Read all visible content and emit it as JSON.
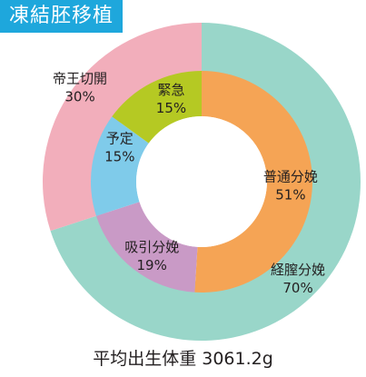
{
  "title": "凍結胚移植",
  "caption": "平均出生体重 3061.2g",
  "chart_data": {
    "type": "donut",
    "title": "凍結胚移植",
    "rings": [
      {
        "name": "outer",
        "slices": [
          {
            "label": "経膣分娩",
            "value": 70,
            "value_label": "70%",
            "color": "#99d6c9"
          },
          {
            "label": "帝王切開",
            "value": 30,
            "value_label": "30%",
            "color": "#f2aebb"
          }
        ]
      },
      {
        "name": "inner",
        "slices": [
          {
            "label": "普通分娩",
            "value": 51,
            "value_label": "51%",
            "color": "#f5a455"
          },
          {
            "label": "吸引分娩",
            "value": 19,
            "value_label": "19%",
            "color": "#c99ac6"
          },
          {
            "label": "予定",
            "value": 15,
            "value_label": "15%",
            "color": "#7fcbea"
          },
          {
            "label": "緊急",
            "value": 15,
            "value_label": "15%",
            "color": "#b5c923"
          }
        ]
      }
    ],
    "footer": "平均出生体重 3061.2g"
  }
}
